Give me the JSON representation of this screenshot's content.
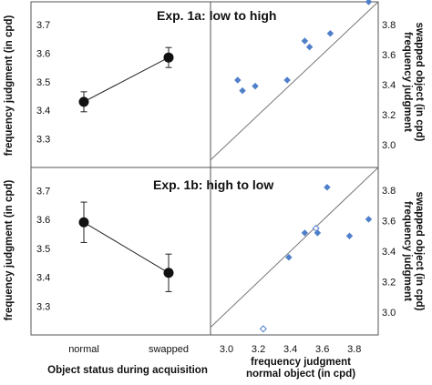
{
  "chart_data": [
    {
      "type": "line",
      "title": "",
      "xlabel": "",
      "ylabel": "frequency judgment (in cpd)",
      "categories": [
        "normal",
        "swapped"
      ],
      "series": [
        {
          "values": [
            3.43,
            3.585
          ],
          "error_low": [
            3.395,
            3.55
          ],
          "error_high": [
            3.465,
            3.62
          ]
        }
      ],
      "ylim": [
        3.2,
        3.78
      ],
      "yticks": [
        "3.3",
        "3.4",
        "3.5",
        "3.6",
        "3.7"
      ],
      "grid": false
    },
    {
      "type": "scatter",
      "title": "Exp. 1a: low to high",
      "xlabel": "",
      "ylabel": "frequency judgment swapped object (in cpd)",
      "xlim": [
        2.9,
        3.95
      ],
      "ylim": [
        2.85,
        3.95
      ],
      "yticks": [
        "3.0",
        "3.2",
        "3.4",
        "3.6",
        "3.8"
      ],
      "diagonal": true,
      "series": [
        {
          "marker": "filled-diamond",
          "color": "#4f7fc8",
          "points": [
            [
              3.07,
              3.43
            ],
            [
              3.1,
              3.36
            ],
            [
              3.18,
              3.39
            ],
            [
              3.38,
              3.43
            ],
            [
              3.49,
              3.69
            ],
            [
              3.52,
              3.65
            ],
            [
              3.65,
              3.74
            ],
            [
              3.89,
              3.95
            ]
          ]
        }
      ]
    },
    {
      "type": "line",
      "title": "",
      "xlabel": "Object status during acquisition",
      "ylabel": "frequency judgment (in cpd)",
      "categories": [
        "normal",
        "swapped"
      ],
      "series": [
        {
          "values": [
            3.59,
            3.415
          ],
          "error_low": [
            3.52,
            3.35
          ],
          "error_high": [
            3.66,
            3.48
          ]
        }
      ],
      "ylim": [
        3.2,
        3.78
      ],
      "yticks": [
        "3.3",
        "3.4",
        "3.5",
        "3.6",
        "3.7"
      ],
      "grid": false
    },
    {
      "type": "scatter",
      "title": "Exp. 1b: high to low",
      "xlabel": "frequency judgment normal object (in cpd)",
      "ylabel": "frequency judgment swapped object (in cpd)",
      "xlim": [
        2.9,
        3.95
      ],
      "ylim": [
        2.85,
        3.95
      ],
      "xticks": [
        "3.0",
        "3.2",
        "3.4",
        "3.6",
        "3.8"
      ],
      "yticks": [
        "3.0",
        "3.2",
        "3.4",
        "3.6",
        "3.8"
      ],
      "diagonal": true,
      "series": [
        {
          "marker": "filled-diamond",
          "color": "#4f7fc8",
          "points": [
            [
              3.39,
              3.36
            ],
            [
              3.49,
              3.52
            ],
            [
              3.57,
              3.52
            ],
            [
              3.63,
              3.82
            ],
            [
              3.77,
              3.5
            ],
            [
              3.89,
              3.61
            ]
          ]
        },
        {
          "marker": "open-diamond",
          "color": "#4f7fc8",
          "points": [
            [
              3.23,
              2.89
            ],
            [
              3.56,
              3.55
            ]
          ]
        }
      ]
    }
  ],
  "labels": {
    "frame_top_xlabel_line1": "frequency judgment",
    "frame_top_xlabel_line2": "normal object (in cpd)",
    "ylabel_right_line1": "frequency judgment",
    "ylabel_right_line2": "swapped object (in cpd)"
  }
}
